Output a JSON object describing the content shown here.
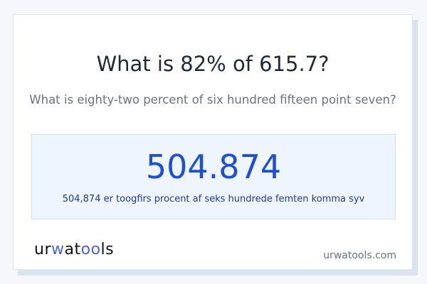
{
  "title": "What is 82% of 615.7?",
  "subtitle": "What is eighty-two percent of six hundred fifteen point seven?",
  "result": {
    "value": "504.874",
    "words": "504,874 er toogfirs procent af seks hundrede femten komma syv"
  },
  "logo": {
    "part1": "ur",
    "part2": "w",
    "part3": "at",
    "part4": "oo",
    "part5": "ls"
  },
  "site": "urwatools.com",
  "colors": {
    "accent": "#1d4ed8",
    "background": "#f5f7fb",
    "result_bg": "#eef5fe"
  }
}
